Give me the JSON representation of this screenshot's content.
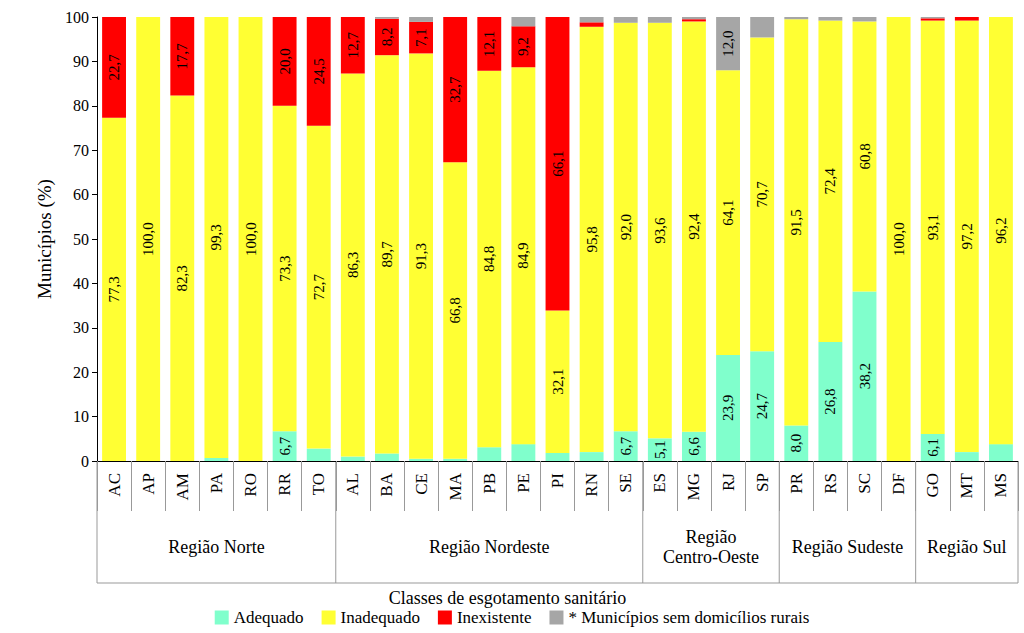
{
  "chart_data": {
    "type": "bar",
    "stacked": true,
    "data_labels": true,
    "grid": false,
    "legend": "bottom",
    "ylabel": "Municípios (%)",
    "legend_title": "Classes de esgotamento sanitário",
    "ylim": [
      0,
      100
    ],
    "yticks": [
      0,
      10,
      20,
      30,
      40,
      50,
      60,
      70,
      80,
      90,
      100
    ],
    "categories": [
      "AC",
      "AP",
      "AM",
      "PA",
      "RO",
      "RR",
      "TO",
      "AL",
      "BA",
      "CE",
      "MA",
      "PB",
      "PE",
      "PI",
      "RN",
      "SE",
      "ES",
      "MG",
      "RJ",
      "SP",
      "PR",
      "RS",
      "SC",
      "DF",
      "GO",
      "MT",
      "MS"
    ],
    "groups": [
      {
        "name": "Região Norte",
        "categories": [
          "AC",
          "AP",
          "AM",
          "PA",
          "RO",
          "RR",
          "TO"
        ]
      },
      {
        "name": "Região Nordeste",
        "categories": [
          "AL",
          "BA",
          "CE",
          "MA",
          "PB",
          "PE",
          "PI",
          "RN",
          "SE"
        ]
      },
      {
        "name": "Região Centro-Oeste",
        "categories": [
          "ES",
          "MG",
          "RJ",
          "SP"
        ]
      },
      {
        "name": "Região Sudeste",
        "categories": [
          "PR",
          "RS",
          "SC",
          "DF"
        ]
      },
      {
        "name": "Região Sul",
        "categories": [
          "GO",
          "MT",
          "MS"
        ]
      }
    ],
    "series": [
      {
        "name": "Adequado",
        "color": "#80FFCC",
        "values": [
          0,
          0,
          0,
          0.7,
          0,
          6.7,
          2.8,
          1.0,
          1.7,
          0.5,
          0.5,
          3.1,
          3.8,
          1.8,
          2.0,
          6.7,
          5.1,
          6.6,
          23.9,
          24.7,
          8.0,
          26.8,
          38.2,
          0,
          6.1,
          2.0,
          3.8
        ],
        "value_labels": [
          null,
          null,
          null,
          null,
          null,
          "6,7",
          null,
          null,
          null,
          null,
          null,
          null,
          null,
          null,
          null,
          "6,7",
          "5,1",
          "6,6",
          "23,9",
          "24,7",
          "8,0",
          "26,8",
          "38,2",
          null,
          "6,1",
          null,
          null
        ]
      },
      {
        "name": "Inadequado",
        "color": "#FFFF33",
        "values": [
          77.3,
          100.0,
          82.3,
          99.3,
          100.0,
          73.3,
          72.7,
          86.3,
          89.7,
          91.3,
          66.8,
          84.8,
          84.9,
          32.1,
          95.8,
          92.0,
          93.6,
          92.4,
          64.1,
          70.7,
          91.5,
          72.4,
          60.8,
          100.0,
          93.1,
          97.2,
          96.2
        ],
        "value_labels": [
          "77,3",
          "100,0",
          "82,3",
          "99,3",
          "100,0",
          "73,3",
          "72,7",
          "86,3",
          "89,7",
          "91,3",
          "66,8",
          "84,8",
          "84,9",
          "32,1",
          "95,8",
          "92,0",
          "93,6",
          "92,4",
          "64,1",
          "70,7",
          "91,5",
          "72,4",
          "60,8",
          "100,0",
          "93,1",
          "97,2",
          "96,2"
        ]
      },
      {
        "name": "Inexistente",
        "color": "#FF0000",
        "values": [
          22.7,
          0,
          17.7,
          0,
          0,
          20.0,
          24.5,
          12.7,
          8.2,
          7.1,
          32.7,
          12.1,
          9.2,
          66.1,
          1.0,
          0,
          0,
          0.5,
          0,
          0,
          0,
          0,
          0,
          0,
          0.5,
          0.8,
          0
        ],
        "value_labels": [
          "22,7",
          null,
          "17,7",
          null,
          null,
          "20,0",
          "24,5",
          "12,7",
          "8,2",
          "7,1",
          "32,7",
          "12,1",
          "9,2",
          "66,1",
          null,
          null,
          null,
          null,
          null,
          null,
          null,
          null,
          null,
          null,
          null,
          null,
          null
        ]
      },
      {
        "name": "* Municípios sem domicílios rurais",
        "color": "#A6A6A6",
        "values": [
          0,
          0,
          0,
          0,
          0,
          0,
          0,
          0,
          0.4,
          1.1,
          0,
          0,
          2.1,
          0,
          1.2,
          1.3,
          1.3,
          0.5,
          12.0,
          4.6,
          0.5,
          0.8,
          1.0,
          0,
          0.3,
          0,
          0
        ],
        "value_labels": [
          null,
          null,
          null,
          null,
          null,
          null,
          null,
          null,
          null,
          null,
          null,
          null,
          null,
          null,
          null,
          null,
          null,
          null,
          "12,0",
          null,
          null,
          null,
          null,
          null,
          null,
          null,
          null
        ]
      }
    ]
  }
}
